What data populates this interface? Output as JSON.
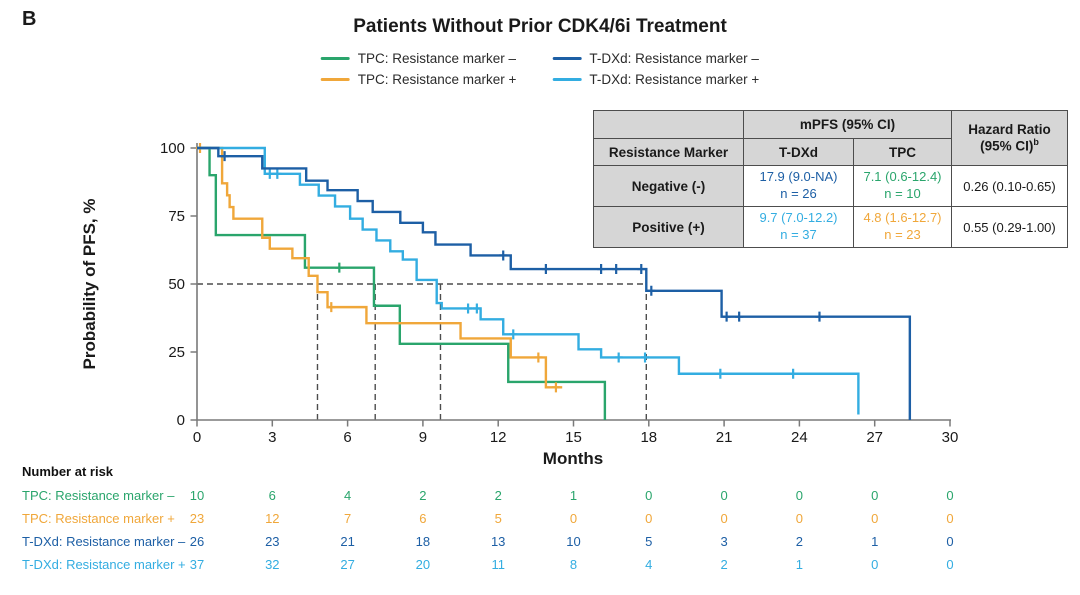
{
  "panel_label": "B",
  "title": "Patients Without Prior CDK4/6i Treatment",
  "legend": {
    "items": [
      {
        "label": "TPC: Resistance marker –",
        "color": "#2aa56c"
      },
      {
        "label": "TPC: Resistance marker +",
        "color": "#f0a73a"
      },
      {
        "label": "T-DXd: Resistance marker –",
        "color": "#1d5fa5"
      },
      {
        "label": "T-DXd: Resistance marker +",
        "color": "#33ade1"
      }
    ]
  },
  "summary_table": {
    "col_group_header": "mPFS (95% CI)",
    "hr_header_line1": "Hazard Ratio",
    "hr_header_line2": "(95% CI)",
    "hr_header_sup": "b",
    "row_header": "Resistance Marker",
    "col_tdxd": "T-DXd",
    "col_tpc": "TPC",
    "rows": [
      {
        "marker": "Negative (-)",
        "tdxd_mpfs": "17.9 (9.0-NA)",
        "tdxd_n": "n = 26",
        "tdxd_color": "#1d5fa5",
        "tpc_mpfs": "7.1 (0.6-12.4)",
        "tpc_n": "n = 10",
        "tpc_color": "#2aa56c",
        "hazard_ratio": "0.26 (0.10-0.65)"
      },
      {
        "marker": "Positive (+)",
        "tdxd_mpfs": "9.7 (7.0-12.2)",
        "tdxd_n": "n = 37",
        "tdxd_color": "#33ade1",
        "tpc_mpfs": "4.8 (1.6-12.7)",
        "tpc_n": "n = 23",
        "tpc_color": "#f0a73a",
        "hazard_ratio": "0.55 (0.29-1.00)"
      }
    ]
  },
  "chart_data": {
    "type": "line",
    "subtype": "kaplan_meier_step",
    "title": "Patients Without Prior CDK4/6i Treatment",
    "xlabel": "Months",
    "ylabel": "Probability of PFS, %",
    "xlim": [
      0,
      30
    ],
    "ylim": [
      0,
      100
    ],
    "xticks": [
      0,
      3,
      6,
      9,
      12,
      15,
      18,
      21,
      24,
      27,
      30
    ],
    "yticks": [
      0,
      25,
      50,
      75,
      100
    ],
    "grid": false,
    "median_guides": {
      "survival_level": 50,
      "median_months": [
        4.8,
        7.1,
        9.7,
        17.9
      ]
    },
    "series": [
      {
        "name": "TPC: Resistance marker –",
        "color": "#2aa56c",
        "n": 10,
        "median_mpfs": "7.1 (0.6-12.4)",
        "start": [
          0,
          100
        ],
        "steps": [
          [
            0.5,
            90
          ],
          [
            0.75,
            68
          ],
          [
            4.3,
            56
          ],
          [
            7.05,
            42
          ],
          [
            8.08,
            28
          ],
          [
            12.4,
            14
          ],
          [
            16.25,
            0
          ]
        ],
        "censors": [
          [
            5.67,
            56
          ]
        ],
        "end_month": 16.25
      },
      {
        "name": "TPC: Resistance marker +",
        "color": "#f0a73a",
        "n": 23,
        "median_mpfs": "4.8 (1.6-12.7)",
        "start": [
          0,
          100
        ],
        "steps": [
          [
            1.0,
            87
          ],
          [
            1.2,
            82.6
          ],
          [
            1.3,
            78.3
          ],
          [
            1.45,
            74
          ],
          [
            2.6,
            67
          ],
          [
            2.9,
            63
          ],
          [
            3.8,
            59.5
          ],
          [
            4.45,
            53
          ],
          [
            4.8,
            47
          ],
          [
            5.2,
            41.5
          ],
          [
            6.75,
            35.6
          ],
          [
            10.5,
            30
          ],
          [
            12.5,
            23
          ],
          [
            13.9,
            12
          ]
        ],
        "censors": [
          [
            0.12,
            100
          ],
          [
            5.35,
            41.5
          ],
          [
            13.6,
            23
          ],
          [
            14.3,
            12
          ]
        ],
        "end_month": 14.55
      },
      {
        "name": "T-DXd: Resistance marker +",
        "color": "#33ade1",
        "n": 37,
        "median_mpfs": "9.7 (7.0-12.2)",
        "start": [
          0,
          100
        ],
        "steps": [
          [
            2.7,
            90.5
          ],
          [
            4.1,
            86.5
          ],
          [
            4.85,
            82.5
          ],
          [
            5.5,
            78.5
          ],
          [
            6.1,
            74
          ],
          [
            6.6,
            70
          ],
          [
            7.15,
            66
          ],
          [
            7.7,
            62
          ],
          [
            8.2,
            59
          ],
          [
            8.75,
            51.5
          ],
          [
            9.55,
            43
          ],
          [
            9.75,
            41
          ],
          [
            11.3,
            37
          ],
          [
            12.2,
            31.5
          ],
          [
            15.2,
            26
          ],
          [
            16.1,
            23
          ],
          [
            19.2,
            17
          ],
          [
            26.35,
            2
          ]
        ],
        "censors": [
          [
            2.9,
            90.5
          ],
          [
            3.2,
            90.5
          ],
          [
            10.8,
            41
          ],
          [
            11.15,
            41
          ],
          [
            12.6,
            31.5
          ],
          [
            16.8,
            23
          ],
          [
            17.85,
            23
          ],
          [
            20.85,
            17
          ],
          [
            23.75,
            17
          ]
        ],
        "end_month": 26.35
      },
      {
        "name": "T-DXd: Resistance marker –",
        "color": "#1d5fa5",
        "n": 26,
        "median_mpfs": "17.9 (9.0-NA)",
        "start": [
          0,
          100
        ],
        "steps": [
          [
            0.85,
            97
          ],
          [
            2.6,
            92.5
          ],
          [
            4.35,
            88
          ],
          [
            5.2,
            84.5
          ],
          [
            6.4,
            80.5
          ],
          [
            7.0,
            76.5
          ],
          [
            8.1,
            72.5
          ],
          [
            9.0,
            69
          ],
          [
            9.5,
            64.5
          ],
          [
            10.9,
            60.5
          ],
          [
            12.5,
            55.5
          ],
          [
            17.9,
            47.5
          ],
          [
            20.9,
            38
          ],
          [
            28.4,
            0
          ]
        ],
        "censors": [
          [
            1.1,
            97
          ],
          [
            12.2,
            60.5
          ],
          [
            13.9,
            55.5
          ],
          [
            16.1,
            55.5
          ],
          [
            16.7,
            55.5
          ],
          [
            17.7,
            55.5
          ],
          [
            18.1,
            47.5
          ],
          [
            21.1,
            38
          ],
          [
            21.6,
            38
          ],
          [
            24.8,
            38
          ]
        ],
        "end_month": 28.4
      }
    ]
  },
  "number_at_risk": {
    "heading": "Number at risk",
    "months": [
      0,
      3,
      6,
      9,
      12,
      15,
      18,
      21,
      24,
      27,
      30
    ],
    "groups": [
      {
        "label": "TPC: Resistance marker –",
        "color": "#2aa56c",
        "counts": [
          10,
          6,
          4,
          2,
          2,
          1,
          0,
          0,
          0,
          0,
          0
        ]
      },
      {
        "label": "TPC: Resistance marker +",
        "color": "#f0a73a",
        "counts": [
          23,
          12,
          7,
          6,
          5,
          0,
          0,
          0,
          0,
          0,
          0
        ]
      },
      {
        "label": "T-DXd: Resistance marker –",
        "color": "#1d5fa5",
        "counts": [
          26,
          23,
          21,
          18,
          13,
          10,
          5,
          3,
          2,
          1,
          0
        ]
      },
      {
        "label": "T-DXd: Resistance marker +",
        "color": "#33ade1",
        "counts": [
          37,
          32,
          27,
          20,
          11,
          8,
          4,
          2,
          1,
          0,
          0
        ]
      }
    ]
  }
}
